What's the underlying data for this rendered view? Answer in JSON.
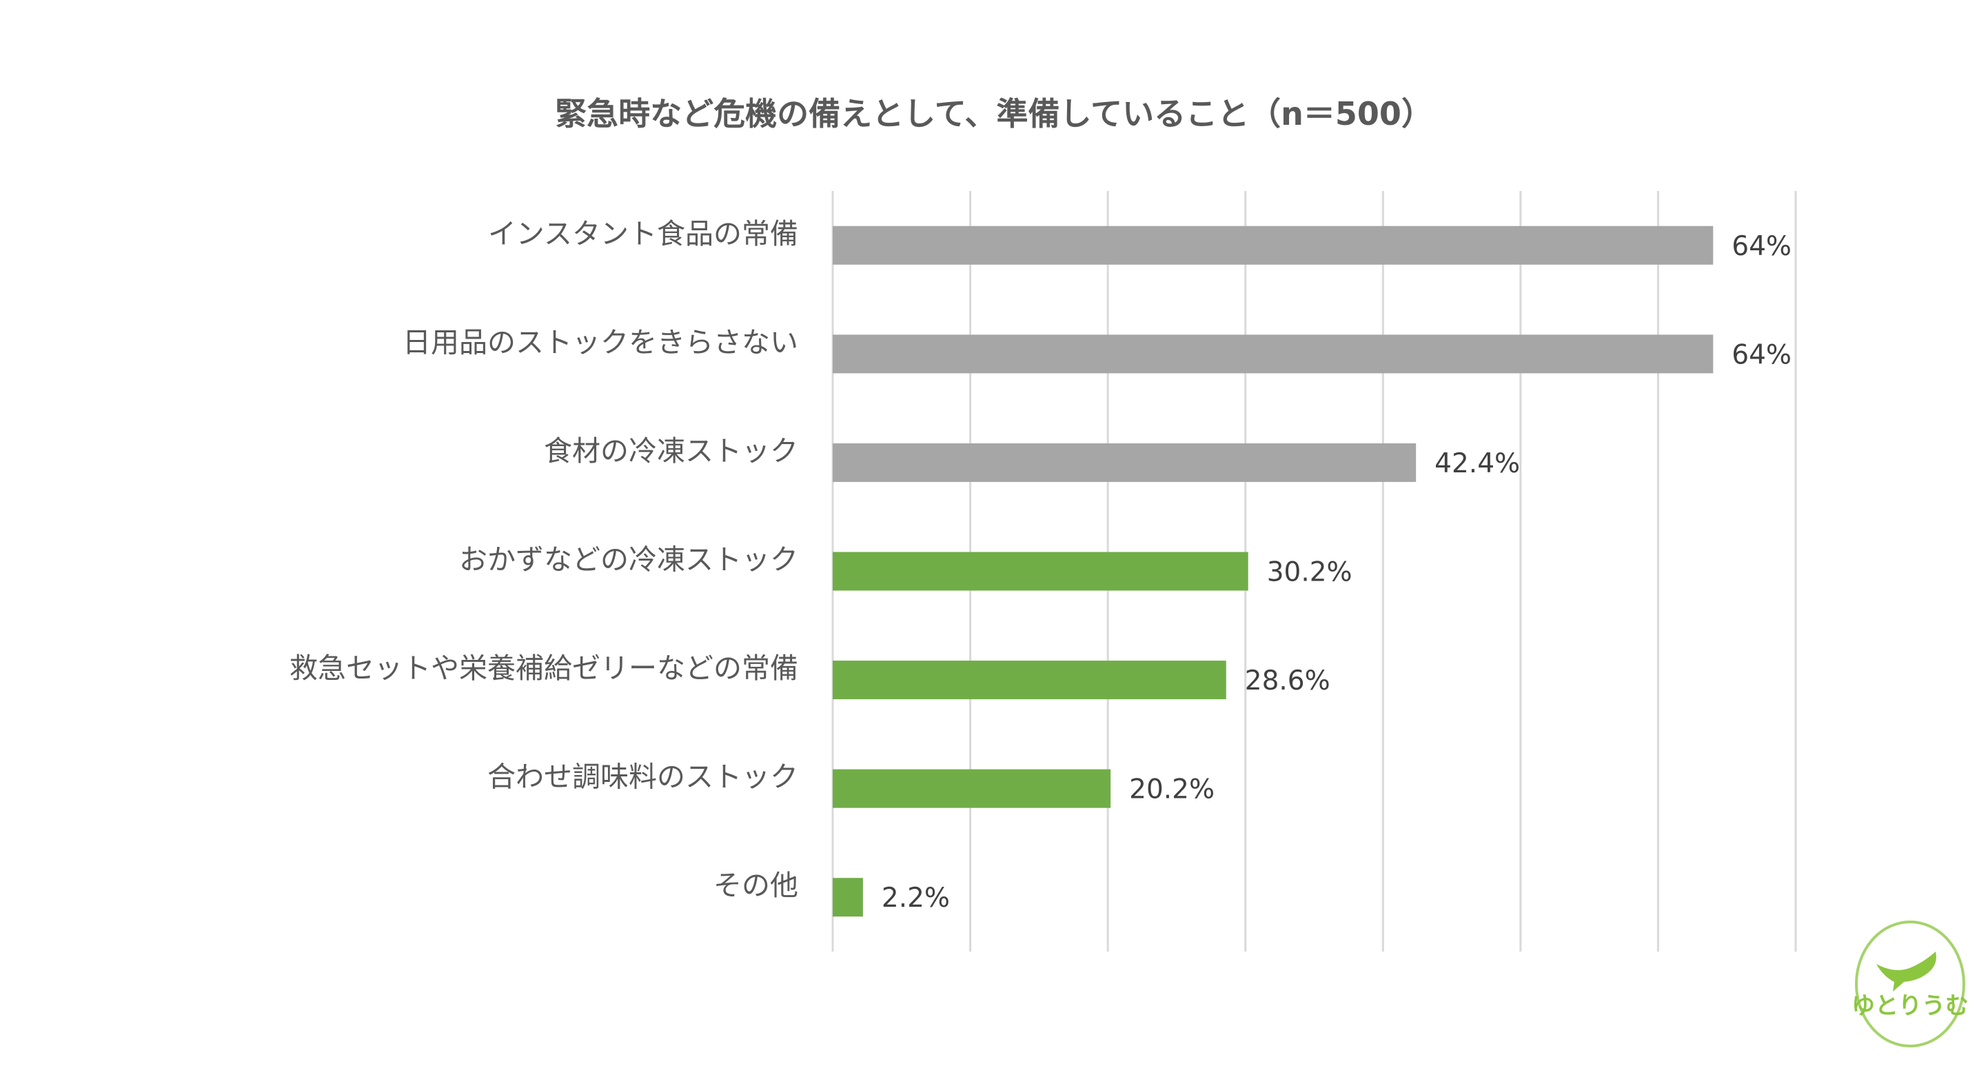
{
  "chart_data": {
    "type": "bar",
    "orientation": "horizontal",
    "title": "緊急時など危機の備えとして、準備していること（n＝500）",
    "categories": [
      "インスタント食品の常備",
      "日用品のストックをきらさない",
      "食材の冷凍ストック",
      "おかずなどの冷凍ストック",
      "救急セットや栄養補給ゼリーなどの常備",
      "合わせ調味料のストック",
      "その他"
    ],
    "values": [
      64,
      64,
      42.4,
      30.2,
      28.6,
      20.2,
      2.2
    ],
    "value_labels": [
      "64%",
      "64%",
      "42.4%",
      "30.2%",
      "28.6%",
      "20.2%",
      "2.2%"
    ],
    "bar_colors": [
      "#a6a6a6",
      "#a6a6a6",
      "#a6a6a6",
      "#70ad47",
      "#70ad47",
      "#70ad47",
      "#70ad47"
    ],
    "xlim": [
      0,
      70
    ],
    "grid_step": 10,
    "grid": true,
    "legend": "none"
  },
  "logo": {
    "text": "ゆとりうむ",
    "color": "#8cc63f"
  }
}
